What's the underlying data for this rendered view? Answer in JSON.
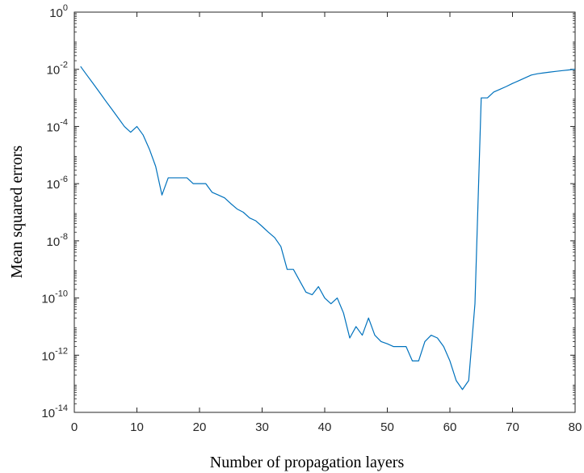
{
  "chart_data": {
    "type": "line",
    "title": "",
    "xlabel": "Number of propagation layers",
    "ylabel": "Mean squared errors",
    "xlim": [
      0,
      80
    ],
    "ylim": [
      1e-14,
      1
    ],
    "yscale": "log",
    "grid": false,
    "legend": "none",
    "x_ticks": [
      0,
      10,
      20,
      30,
      40,
      50,
      60,
      70,
      80
    ],
    "x_tick_labels": [
      "0",
      "10",
      "20",
      "30",
      "40",
      "50",
      "60",
      "70",
      "80"
    ],
    "y_ticks": [
      1e-14,
      1e-12,
      1e-10,
      1e-08,
      1e-06,
      0.0001,
      0.01,
      1
    ],
    "y_tick_labels": [
      {
        "base": "10",
        "exp": "-14"
      },
      {
        "base": "10",
        "exp": "-12"
      },
      {
        "base": "10",
        "exp": "-10"
      },
      {
        "base": "10",
        "exp": "-8"
      },
      {
        "base": "10",
        "exp": "-6"
      },
      {
        "base": "10",
        "exp": "-4"
      },
      {
        "base": "10",
        "exp": "-2"
      },
      {
        "base": "10",
        "exp": "0"
      }
    ],
    "series": [
      {
        "color": "#0072BD",
        "x": [
          1,
          2,
          3,
          4,
          5,
          6,
          7,
          8,
          9,
          10,
          11,
          12,
          13,
          14,
          15,
          16,
          17,
          18,
          19,
          20,
          21,
          22,
          23,
          24,
          25,
          26,
          27,
          28,
          29,
          30,
          31,
          32,
          33,
          34,
          35,
          36,
          37,
          38,
          39,
          40,
          41,
          42,
          43,
          44,
          45,
          46,
          47,
          48,
          49,
          50,
          51,
          52,
          53,
          54,
          55,
          56,
          57,
          58,
          59,
          60,
          61,
          62,
          63,
          64,
          65,
          66,
          67,
          68,
          69,
          70,
          71,
          72,
          73,
          74,
          75,
          76,
          77,
          78,
          79,
          80
        ],
        "y": [
          0.0126,
          0.0063,
          0.0032,
          0.0016,
          0.00079,
          0.0004,
          0.0002,
          0.0001,
          6.3e-05,
          0.0001,
          5e-05,
          1.6e-05,
          4e-06,
          4e-07,
          1.6e-06,
          1.6e-06,
          1.6e-06,
          1.6e-06,
          1e-06,
          1e-06,
          1e-06,
          5e-07,
          4e-07,
          3.2e-07,
          2e-07,
          1.3e-07,
          1e-07,
          6.3e-08,
          5e-08,
          3.2e-08,
          2e-08,
          1.3e-08,
          6.3e-09,
          1e-09,
          1e-09,
          4e-10,
          1.6e-10,
          1.3e-10,
          2.5e-10,
          1e-10,
          6.3e-11,
          1e-10,
          3e-11,
          4e-12,
          1e-11,
          5e-12,
          2e-11,
          5e-12,
          3e-12,
          2.5e-12,
          2e-12,
          2e-12,
          2e-12,
          6.3e-13,
          6.3e-13,
          3e-12,
          5e-12,
          4e-12,
          2e-12,
          6.3e-13,
          1.3e-13,
          6.3e-14,
          1.3e-13,
          6.3e-11,
          0.001,
          0.001,
          0.0016,
          0.002,
          0.0025,
          0.0032,
          0.004,
          0.005,
          0.0063,
          0.007,
          0.0075,
          0.008,
          0.0085,
          0.009,
          0.0095,
          0.01
        ]
      }
    ]
  }
}
